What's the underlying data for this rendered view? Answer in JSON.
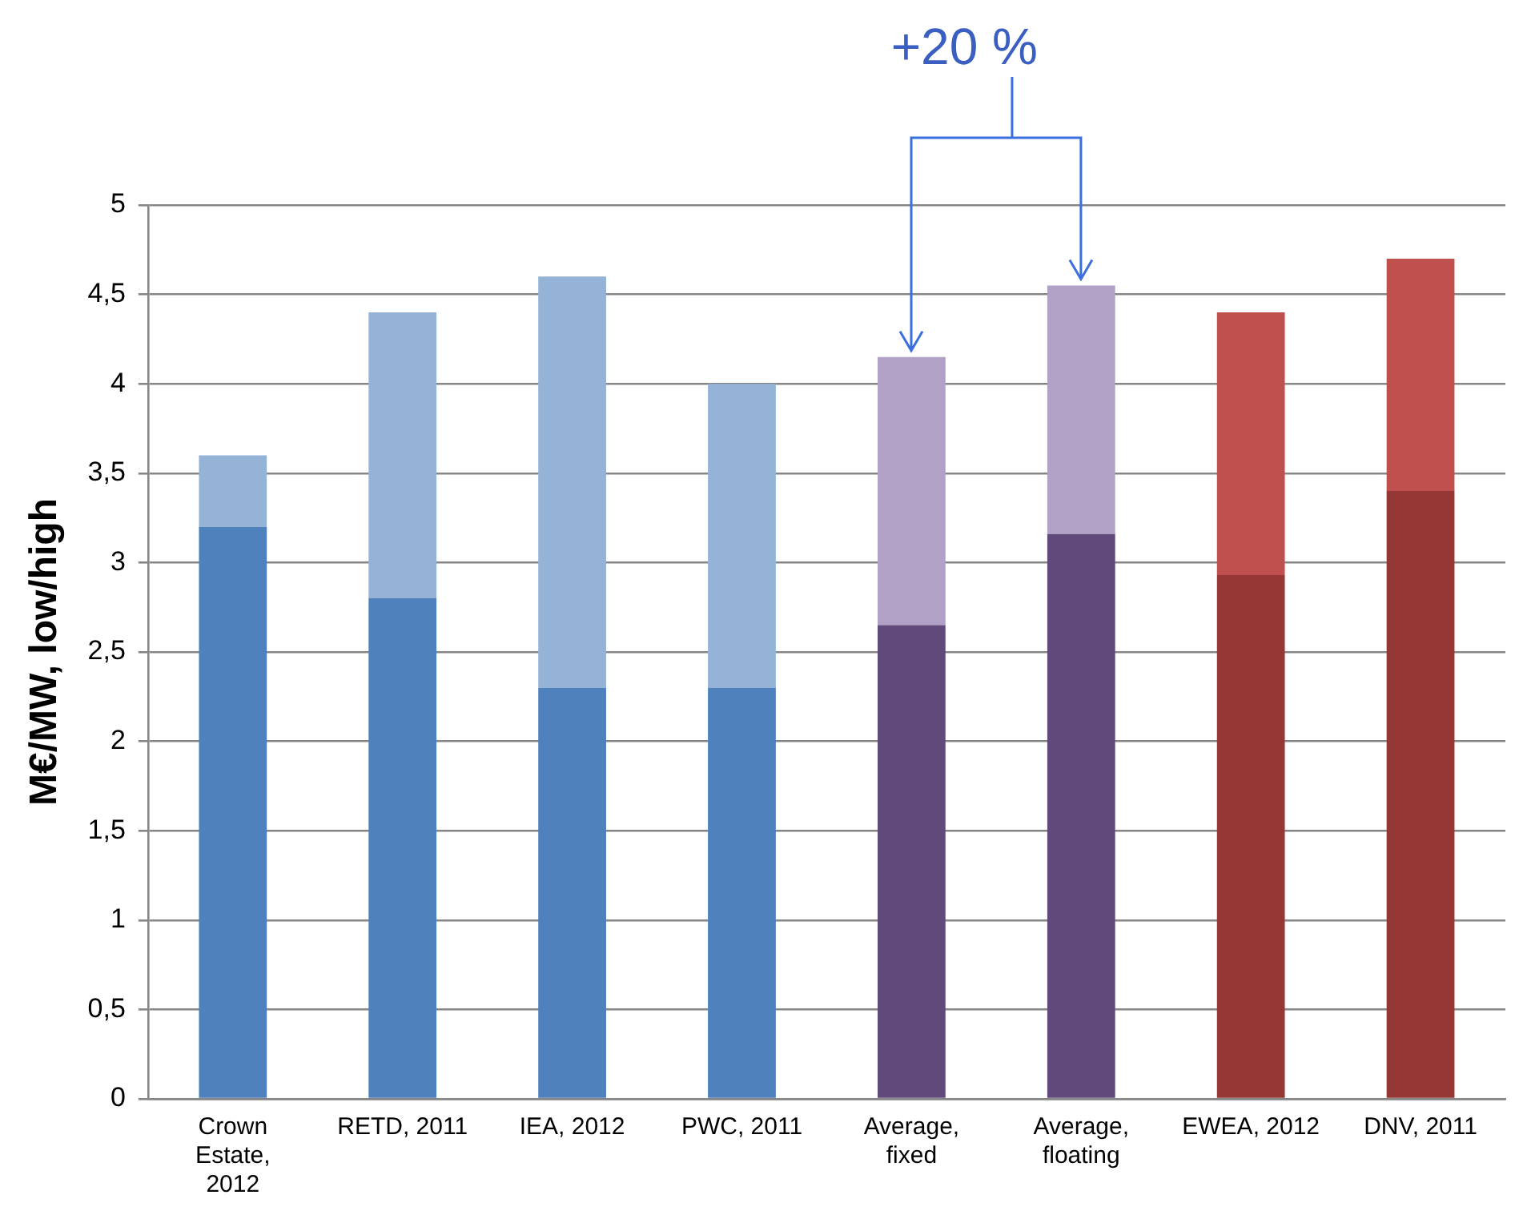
{
  "chart_data": {
    "type": "bar",
    "stacked": true,
    "ylabel": "M€/MW, low/high",
    "categories": [
      "Crown Estate, 2012",
      "RETD, 2011",
      "IEA, 2012",
      "PWC, 2011",
      "Average, fixed",
      "Average, floating",
      "EWEA, 2012",
      "DNV, 2011"
    ],
    "series": [
      {
        "colors": [
          "#4f81bd",
          "#4f81bd",
          "#4f81bd",
          "#4f81bd",
          "#604a7b",
          "#604a7b",
          "#953735",
          "#953735"
        ],
        "values": [
          3.2,
          2.8,
          2.3,
          2.3,
          2.65,
          3.16,
          2.93,
          3.4
        ]
      },
      {
        "colors": [
          "#95b3d7",
          "#95b3d7",
          "#95b3d7",
          "#95b3d7",
          "#b2a1c7",
          "#b2a1c7",
          "#c0504d",
          "#c0504d"
        ],
        "values": [
          0.4,
          1.6,
          2.3,
          1.7,
          1.5,
          1.39,
          1.47,
          1.3
        ]
      }
    ],
    "ylim": [
      0,
      5
    ],
    "yticks": [
      0,
      {
        "value": 0.5,
        "label": "0,5"
      },
      1,
      {
        "value": 1.5,
        "label": "1,5"
      },
      2,
      {
        "value": 2.5,
        "label": "2,5"
      },
      3,
      {
        "value": 3.5,
        "label": "3,5"
      },
      4,
      {
        "value": 4.5,
        "label": "4,5"
      },
      5
    ],
    "grid": "y",
    "legend": false,
    "annotations": [
      "+20 %"
    ]
  }
}
